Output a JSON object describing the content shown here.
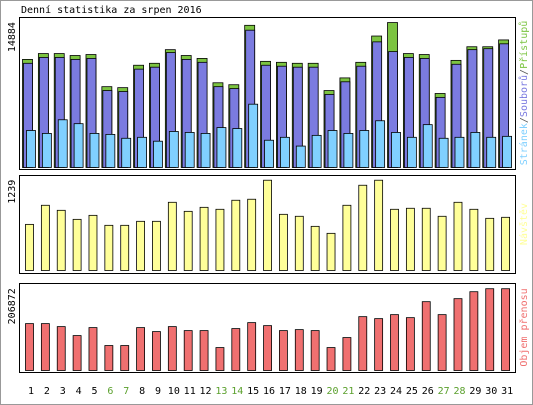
{
  "chart_data": [
    {
      "type": "bar",
      "title": "Denní statistika za srpen 2016",
      "separator": "/",
      "ylim": [
        0,
        15300
      ],
      "yticks": [
        14884
      ],
      "series": [
        {
          "name": "Přístupů",
          "color": "#7cc441",
          "values": [
            11100,
            11700,
            11700,
            11500,
            11600,
            8300,
            8200,
            10500,
            10700,
            12100,
            11500,
            11200,
            8700,
            8500,
            14600,
            10900,
            10800,
            10700,
            10700,
            7900,
            9200,
            10800,
            13500,
            14884,
            11700,
            11600,
            7600,
            11000,
            12400,
            12400,
            13100
          ]
        },
        {
          "name": "Souborů",
          "color": "#7b7be0",
          "values": [
            10700,
            11300,
            11300,
            11100,
            11200,
            7900,
            7800,
            10100,
            10300,
            11800,
            11100,
            10800,
            8300,
            8100,
            14100,
            10500,
            10400,
            10300,
            10300,
            7500,
            8800,
            10400,
            12900,
            11900,
            11300,
            11200,
            7200,
            10600,
            12100,
            12200,
            12700
          ]
        },
        {
          "name": "Stránek",
          "color": "#80d0ff",
          "values": [
            3800,
            3500,
            4900,
            4500,
            3500,
            3400,
            3000,
            3100,
            2700,
            3700,
            3600,
            3500,
            4100,
            4000,
            6500,
            2800,
            3100,
            2200,
            3300,
            3800,
            3500,
            3800,
            4800,
            3600,
            3100,
            4400,
            3000,
            3100,
            3600,
            3100,
            3200
          ]
        }
      ]
    },
    {
      "type": "bar",
      "ylim": [
        0,
        1290
      ],
      "yticks": [
        1239
      ],
      "series": [
        {
          "name": "Návštěv",
          "color": "#ffff99",
          "values": [
            633,
            895,
            826,
            702,
            757,
            620,
            620,
            675,
            675,
            936,
            812,
            867,
            840,
            964,
            978,
            1239,
            771,
            744,
            606,
            510,
            895,
            1170,
            1239,
            840,
            854,
            854,
            744,
            936,
            840,
            716,
            730
          ]
        }
      ]
    },
    {
      "type": "bar",
      "ylim": [
        0,
        215000
      ],
      "yticks": [
        206872
      ],
      "categories": [
        "1",
        "2",
        "3",
        "4",
        "5",
        "6",
        "7",
        "8",
        "9",
        "10",
        "11",
        "12",
        "13",
        "14",
        "15",
        "16",
        "17",
        "18",
        "19",
        "20",
        "21",
        "22",
        "23",
        "24",
        "25",
        "26",
        "27",
        "28",
        "29",
        "30",
        "31"
      ],
      "category_colors": [
        "#000",
        "#000",
        "#000",
        "#000",
        "#000",
        "#5aa02c",
        "#5aa02c",
        "#000",
        "#000",
        "#000",
        "#000",
        "#000",
        "#5aa02c",
        "#5aa02c",
        "#000",
        "#000",
        "#000",
        "#000",
        "#000",
        "#5aa02c",
        "#5aa02c",
        "#000",
        "#000",
        "#000",
        "#000",
        "#000",
        "#5aa02c",
        "#5aa02c",
        "#000",
        "#000",
        "#000"
      ],
      "series": [
        {
          "name": "Objem přenosu",
          "color": "#f07070",
          "values": [
            118600,
            118600,
            111000,
            88300,
            108500,
            63100,
            63100,
            108500,
            98400,
            111000,
            100900,
            100900,
            58000,
            106000,
            121100,
            113500,
            100900,
            103400,
            100900,
            58000,
            83300,
            136200,
            131200,
            141300,
            133700,
            174100,
            141300,
            181700,
            199300,
            206872,
            206872
          ]
        }
      ]
    }
  ]
}
